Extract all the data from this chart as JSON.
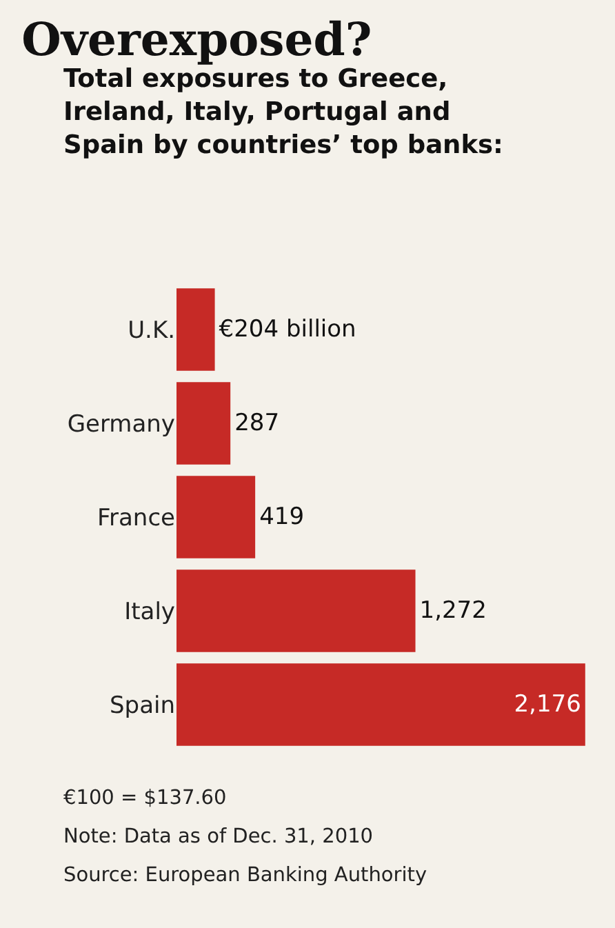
{
  "chart_data": {
    "type": "bar",
    "orientation": "horizontal",
    "title": "Overexposed?",
    "subtitle": "Total exposures to Greece, Ireland, Italy, Portugal and Spain by countries’ top banks:",
    "categories": [
      "U.K.",
      "Germany",
      "France",
      "Italy",
      "Spain"
    ],
    "values": [
      204,
      287,
      419,
      1272,
      2176
    ],
    "value_labels": [
      "€204 billion",
      "287",
      "419",
      "1,272",
      "2,176"
    ],
    "color": "#c62a26",
    "tick_labels": "y",
    "grid": false,
    "legend": false,
    "annotations": [
      "€100 = $137.60",
      "Note: Data as of Dec. 31, 2010",
      "Source: European Banking Authority"
    ]
  }
}
